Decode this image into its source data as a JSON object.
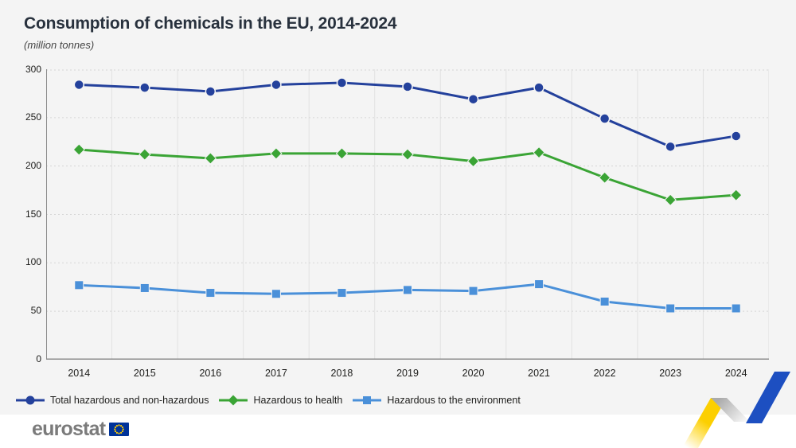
{
  "header": {
    "title": "Consumption of chemicals in the EU, 2014-2024",
    "subtitle": "(million tonnes)"
  },
  "chart_data": {
    "type": "line",
    "title": "Consumption of chemicals in the EU, 2014-2024",
    "unit_label": "(million tonnes)",
    "categories": [
      "2014",
      "2015",
      "2016",
      "2017",
      "2018",
      "2019",
      "2020",
      "2021",
      "2022",
      "2023",
      "2024"
    ],
    "series": [
      {
        "name": "Total hazardous and non-hazardous",
        "marker": "circle",
        "color": "#24419c",
        "values": [
          284,
          281,
          277,
          284,
          286,
          282,
          269,
          281,
          249,
          220,
          231
        ]
      },
      {
        "name": "Hazardous to health",
        "marker": "diamond",
        "color": "#3aa435",
        "values": [
          217,
          212,
          208,
          213,
          213,
          212,
          205,
          214,
          188,
          165,
          170
        ]
      },
      {
        "name": "Hazardous to the environment",
        "marker": "square",
        "color": "#4a90d9",
        "values": [
          77,
          74,
          69,
          68,
          69,
          72,
          71,
          78,
          60,
          53,
          53
        ]
      }
    ],
    "xlabel": "",
    "ylabel": "",
    "ylim": [
      0,
      300
    ],
    "ytick_step": 50,
    "grid": "horizontal dashed gridlines, vertical category separators, light gray plot background",
    "legend_position": "bottom-left"
  },
  "footer": {
    "logo_text": "eurostat",
    "flag_icon": "eu-flag-icon",
    "decoration_icon": "yellow-blue-ribbon-icon"
  },
  "colors": {
    "page_background": "#f4f4f4",
    "footer_background": "#ffffff",
    "axis": "#8b8b8b",
    "gridline": "#d6d6d6",
    "separator": "#e1e1e1",
    "title_text": "#28313d",
    "logo_gray": "#7b7b7b",
    "eu_flag_blue": "#003399",
    "ribbon_yellow": "#fccf00",
    "ribbon_blue": "#1d4fc1"
  }
}
